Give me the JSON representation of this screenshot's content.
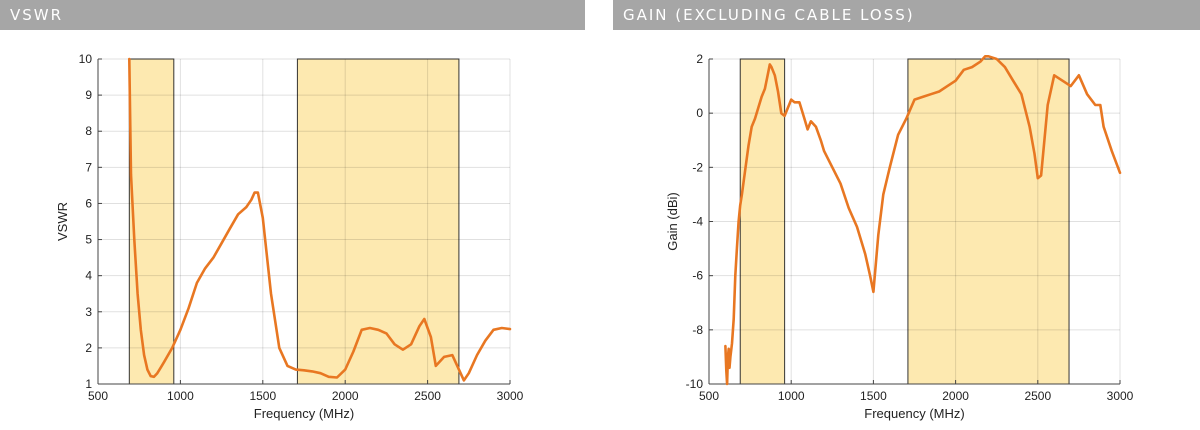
{
  "chart_data": [
    {
      "type": "line",
      "banner": "VSWR",
      "xlabel": "Frequency (MHz)",
      "ylabel": "VSWR",
      "xlim": [
        500,
        3000
      ],
      "ylim": [
        1,
        10
      ],
      "x_ticks": [
        500,
        1000,
        1500,
        2000,
        2500,
        3000
      ],
      "y_ticks": [
        1,
        2,
        3,
        4,
        5,
        6,
        7,
        8,
        9,
        10
      ],
      "grid": true,
      "highlight_bands": [
        [
          690,
          960
        ],
        [
          1710,
          2690
        ]
      ],
      "colors": {
        "line": "#e87722",
        "band_fill": "#fde9b0",
        "band_stroke": "#333333",
        "banner_bg": "#a6a6a6"
      },
      "series": [
        {
          "x": [
            690,
            700,
            720,
            740,
            760,
            780,
            800,
            820,
            840,
            860,
            880,
            900,
            950,
            1000,
            1050,
            1100,
            1150,
            1200,
            1250,
            1300,
            1350,
            1400,
            1430,
            1450,
            1470,
            1500,
            1550,
            1600,
            1650,
            1700,
            1750,
            1800,
            1850,
            1900,
            1950,
            2000,
            2050,
            2100,
            2150,
            2200,
            2250,
            2300,
            2350,
            2400,
            2450,
            2480,
            2520,
            2550,
            2600,
            2650,
            2700,
            2720,
            2750,
            2800,
            2850,
            2900,
            2950,
            3000
          ],
          "y": [
            10,
            6.8,
            5.0,
            3.5,
            2.5,
            1.8,
            1.4,
            1.22,
            1.2,
            1.3,
            1.45,
            1.6,
            2.0,
            2.5,
            3.1,
            3.8,
            4.2,
            4.5,
            4.9,
            5.3,
            5.7,
            5.9,
            6.1,
            6.3,
            6.3,
            5.6,
            3.5,
            2.0,
            1.5,
            1.4,
            1.38,
            1.35,
            1.3,
            1.2,
            1.18,
            1.4,
            1.9,
            2.5,
            2.55,
            2.5,
            2.4,
            2.1,
            1.95,
            2.1,
            2.6,
            2.8,
            2.3,
            1.5,
            1.75,
            1.8,
            1.3,
            1.1,
            1.3,
            1.8,
            2.2,
            2.5,
            2.55,
            2.52
          ]
        }
      ]
    },
    {
      "type": "line",
      "banner": "GAIN (EXCLUDING CABLE LOSS)",
      "xlabel": "Frequency (MHz)",
      "ylabel": "Gain (dBi)",
      "xlim": [
        500,
        3000
      ],
      "ylim": [
        -10,
        2
      ],
      "x_ticks": [
        500,
        1000,
        1500,
        2000,
        2500,
        3000
      ],
      "y_ticks": [
        -10,
        -8,
        -6,
        -4,
        -2,
        0,
        2
      ],
      "grid": true,
      "highlight_bands": [
        [
          690,
          960
        ],
        [
          1710,
          2690
        ]
      ],
      "colors": {
        "line": "#e87722",
        "band_fill": "#fde9b0",
        "band_stroke": "#333333",
        "banner_bg": "#a6a6a6"
      },
      "series": [
        {
          "x": [
            600,
            605,
            610,
            615,
            620,
            625,
            630,
            640,
            650,
            660,
            670,
            680,
            690,
            700,
            720,
            740,
            760,
            780,
            800,
            820,
            840,
            860,
            870,
            880,
            900,
            920,
            940,
            960,
            980,
            1000,
            1020,
            1050,
            1080,
            1100,
            1120,
            1150,
            1180,
            1200,
            1250,
            1300,
            1350,
            1400,
            1450,
            1480,
            1500,
            1530,
            1560,
            1600,
            1650,
            1700,
            1750,
            1800,
            1850,
            1900,
            1950,
            2000,
            2050,
            2100,
            2150,
            2180,
            2200,
            2250,
            2300,
            2350,
            2400,
            2450,
            2480,
            2500,
            2520,
            2540,
            2560,
            2600,
            2650,
            2700,
            2750,
            2800,
            2850,
            2880,
            2900,
            2950,
            3000
          ],
          "y": [
            -8.6,
            -9.5,
            -10.0,
            -9.0,
            -8.7,
            -9.4,
            -9.0,
            -8.5,
            -7.6,
            -6.0,
            -5.0,
            -4.0,
            -3.4,
            -3.0,
            -2.1,
            -1.2,
            -0.5,
            -0.2,
            0.2,
            0.6,
            0.9,
            1.5,
            1.8,
            1.7,
            1.4,
            0.8,
            0.0,
            -0.1,
            0.2,
            0.5,
            0.4,
            0.4,
            -0.2,
            -0.6,
            -0.3,
            -0.5,
            -1.0,
            -1.4,
            -2.0,
            -2.6,
            -3.5,
            -4.2,
            -5.2,
            -6.0,
            -6.6,
            -4.5,
            -3.0,
            -2.0,
            -0.8,
            -0.2,
            0.5,
            0.6,
            0.7,
            0.8,
            1.0,
            1.2,
            1.6,
            1.7,
            1.9,
            2.1,
            2.1,
            2.0,
            1.7,
            1.2,
            0.7,
            -0.5,
            -1.5,
            -2.4,
            -2.3,
            -1.0,
            0.3,
            1.4,
            1.2,
            1.0,
            1.4,
            0.7,
            0.3,
            0.3,
            -0.5,
            -1.4,
            -2.2
          ]
        }
      ]
    }
  ]
}
